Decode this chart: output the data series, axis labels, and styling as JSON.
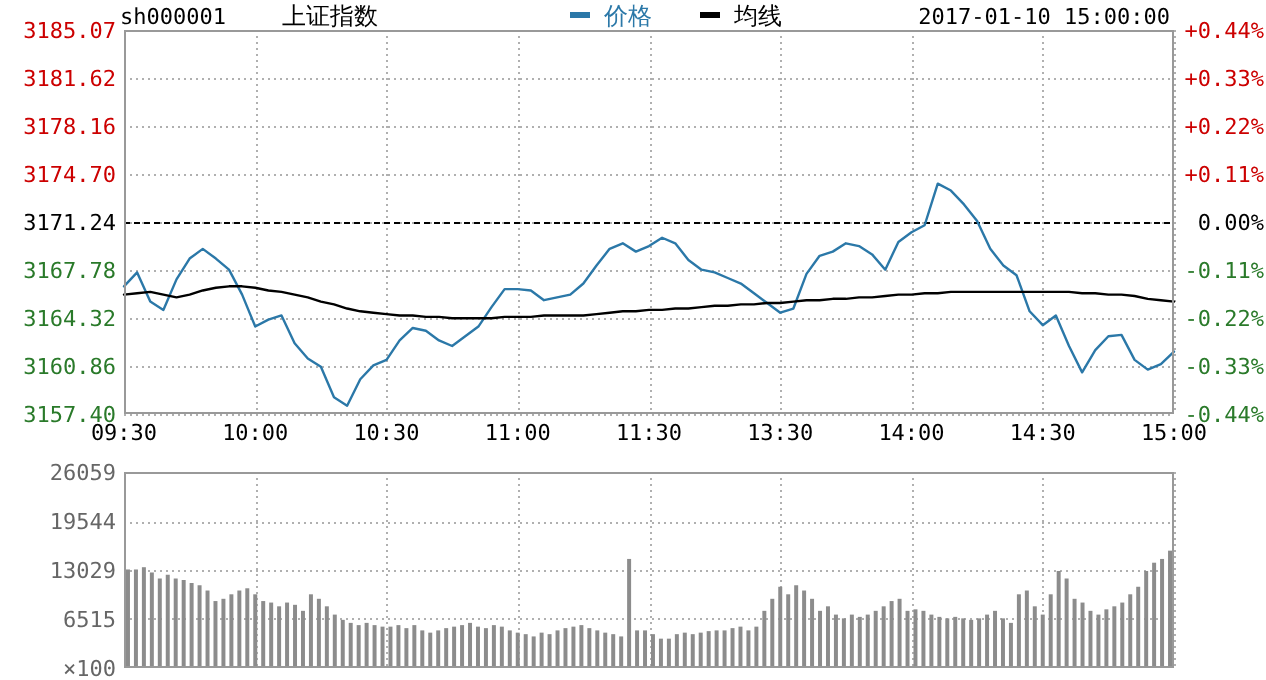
{
  "chart_data": [
    {
      "type": "line",
      "title": "上证指数",
      "annotations": [
        "sh000001",
        "2017-01-10 15:00:00"
      ],
      "legend": "top",
      "grid": true,
      "categories": [
        "09:30",
        null,
        null,
        null,
        null,
        null,
        null,
        null,
        null,
        null,
        "10:00",
        null,
        null,
        null,
        null,
        null,
        null,
        null,
        null,
        null,
        "10:30",
        null,
        null,
        null,
        null,
        null,
        null,
        null,
        null,
        null,
        "11:00",
        null,
        null,
        null,
        null,
        null,
        null,
        null,
        null,
        null,
        "11:30",
        null,
        null,
        null,
        null,
        null,
        null,
        null,
        null,
        null,
        "13:30",
        null,
        null,
        null,
        null,
        null,
        null,
        null,
        null,
        null,
        "14:00",
        null,
        null,
        null,
        null,
        null,
        null,
        null,
        null,
        null,
        "14:30",
        null,
        null,
        null,
        null,
        null,
        null,
        null,
        null,
        null,
        "15:00"
      ],
      "series": [
        {
          "name": "价格",
          "color": "#2b78a8",
          "values": [
            3166.6,
            3167.6,
            3165.5,
            3164.9,
            3167.1,
            3168.6,
            3169.3,
            3168.6,
            3167.8,
            3166.0,
            3163.7,
            3164.2,
            3164.5,
            3162.5,
            3161.4,
            3160.8,
            3158.6,
            3158.0,
            3159.9,
            3160.9,
            3161.3,
            3162.7,
            3163.6,
            3163.4,
            3162.7,
            3162.3,
            3163.0,
            3163.7,
            3165.1,
            3166.4,
            3166.4,
            3166.3,
            3165.6,
            3165.8,
            3166.0,
            3166.8,
            3168.1,
            3169.3,
            3169.7,
            3169.1,
            3169.5,
            3170.1,
            3169.7,
            3168.5,
            3167.8,
            3167.6,
            3167.2,
            3166.8,
            3166.1,
            3165.4,
            3164.7,
            3165.0,
            3167.5,
            3168.8,
            3169.1,
            3169.7,
            3169.5,
            3168.9,
            3167.8,
            3169.8,
            3170.5,
            3171.0,
            3174.0,
            3173.5,
            3172.5,
            3171.3,
            3169.3,
            3168.1,
            3167.4,
            3164.8,
            3163.8,
            3164.5,
            3162.3,
            3160.4,
            3162.0,
            3163.0,
            3163.1,
            3161.3,
            3160.6,
            3161.0,
            3161.9
          ]
        },
        {
          "name": "均线",
          "color": "#000000",
          "values": [
            3166.0,
            3166.1,
            3166.2,
            3166.0,
            3165.8,
            3166.0,
            3166.3,
            3166.5,
            3166.6,
            3166.6,
            3166.5,
            3166.3,
            3166.2,
            3166.0,
            3165.8,
            3165.5,
            3165.3,
            3165.0,
            3164.8,
            3164.7,
            3164.6,
            3164.5,
            3164.5,
            3164.4,
            3164.4,
            3164.3,
            3164.3,
            3164.3,
            3164.3,
            3164.4,
            3164.4,
            3164.4,
            3164.5,
            3164.5,
            3164.5,
            3164.5,
            3164.6,
            3164.7,
            3164.8,
            3164.8,
            3164.9,
            3164.9,
            3165.0,
            3165.0,
            3165.1,
            3165.2,
            3165.2,
            3165.3,
            3165.3,
            3165.4,
            3165.4,
            3165.5,
            3165.6,
            3165.6,
            3165.7,
            3165.7,
            3165.8,
            3165.8,
            3165.9,
            3166.0,
            3166.0,
            3166.1,
            3166.1,
            3166.2,
            3166.2,
            3166.2,
            3166.2,
            3166.2,
            3166.2,
            3166.2,
            3166.2,
            3166.2,
            3166.2,
            3166.1,
            3166.1,
            3166.0,
            3166.0,
            3165.9,
            3165.7,
            3165.6,
            3165.5
          ]
        }
      ],
      "ylim": [
        3157.4,
        3185.07
      ],
      "yticks": [
        {
          "value": 3157.4,
          "label": "3157.40"
        },
        3160.86,
        3164.32,
        3167.78,
        3171.24,
        {
          "value": 3174.7,
          "label": "3174.70"
        },
        3178.16,
        3181.62,
        3185.07
      ],
      "y2lim": [
        -0.44,
        0.44
      ],
      "y2ticks": [
        {
          "value": -0.44,
          "label": "-0.44%"
        },
        {
          "value": -0.33,
          "label": "-0.33%"
        },
        {
          "value": -0.22,
          "label": "-0.22%"
        },
        {
          "value": -0.11,
          "label": "-0.11%"
        },
        {
          "value": 0,
          "label": "0.00%"
        },
        {
          "value": 0.11,
          "label": "+0.11%"
        },
        {
          "value": 0.22,
          "label": "+0.22%"
        },
        {
          "value": 0.33,
          "label": "+0.33%"
        },
        {
          "value": 0.44,
          "label": "+0.44%"
        }
      ],
      "ref_lines": [
        {
          "axis": "y",
          "value": 3171.24,
          "color": "#000000",
          "line_style": "dashed"
        }
      ]
    },
    {
      "type": "bar",
      "grid": true,
      "tick_labels": "y",
      "categories": [
        null,
        null,
        null,
        null,
        null,
        null,
        null,
        null,
        null,
        null,
        null,
        null,
        null,
        null,
        null,
        null,
        null,
        null,
        null,
        null,
        null,
        null,
        null,
        null,
        null,
        null,
        null,
        null,
        null,
        null,
        null,
        null,
        null,
        null,
        null,
        null,
        null,
        null,
        null,
        null,
        null,
        null,
        null,
        null,
        null,
        null,
        null,
        null,
        null,
        null,
        null,
        null,
        null,
        null,
        null,
        null,
        null,
        null,
        null,
        null,
        null,
        null,
        null,
        null,
        null,
        null,
        null,
        null,
        null,
        null,
        null,
        null,
        null,
        null,
        null,
        null,
        null,
        null,
        null,
        null,
        null,
        null,
        null,
        null,
        null,
        null,
        null,
        null,
        null,
        null,
        null,
        null,
        null,
        null,
        null,
        null,
        null,
        null,
        null,
        null,
        null,
        null,
        null,
        null,
        null,
        null,
        null,
        null,
        null,
        null,
        null,
        null,
        null,
        null,
        null,
        null,
        null,
        null,
        null,
        null,
        null,
        null,
        null,
        null,
        null,
        null,
        null,
        null,
        null,
        null,
        null,
        null
      ],
      "series": [
        {
          "color": "#8c8c8c",
          "values": [
            13100,
            13100,
            13400,
            12700,
            11900,
            12400,
            11900,
            11700,
            11300,
            11000,
            10300,
            8900,
            9200,
            9800,
            10300,
            10600,
            9800,
            8900,
            8700,
            8200,
            8700,
            8400,
            7600,
            9800,
            9200,
            8200,
            7100,
            6400,
            6000,
            5700,
            6000,
            5700,
            5500,
            5500,
            5700,
            5300,
            5700,
            5000,
            4700,
            5000,
            5300,
            5500,
            5700,
            6000,
            5500,
            5300,
            5700,
            5500,
            5000,
            4700,
            4500,
            4200,
            4700,
            4500,
            5000,
            5300,
            5500,
            5700,
            5300,
            5000,
            4700,
            4500,
            4200,
            14500,
            5000,
            5000,
            4500,
            3900,
            3900,
            4500,
            4700,
            4500,
            4700,
            4900,
            5000,
            5000,
            5300,
            5500,
            5000,
            5500,
            7600,
            9200,
            10800,
            9800,
            11000,
            10300,
            9200,
            7600,
            8200,
            7100,
            6600,
            7100,
            6800,
            7100,
            7600,
            8200,
            8900,
            9200,
            7600,
            7800,
            7600,
            7100,
            6800,
            6600,
            6800,
            6600,
            6400,
            6600,
            7100,
            7600,
            6600,
            6000,
            9800,
            10300,
            8200,
            7100,
            9800,
            12900,
            11900,
            9200,
            8700,
            7600,
            7100,
            7800,
            8200,
            8700,
            9800,
            10800,
            12900,
            14000,
            14500,
            15600
          ]
        }
      ],
      "ylim": [
        0,
        26059
      ],
      "ylabel": "×100",
      "yticks": [
        6515,
        13029,
        19544,
        26059
      ]
    }
  ]
}
